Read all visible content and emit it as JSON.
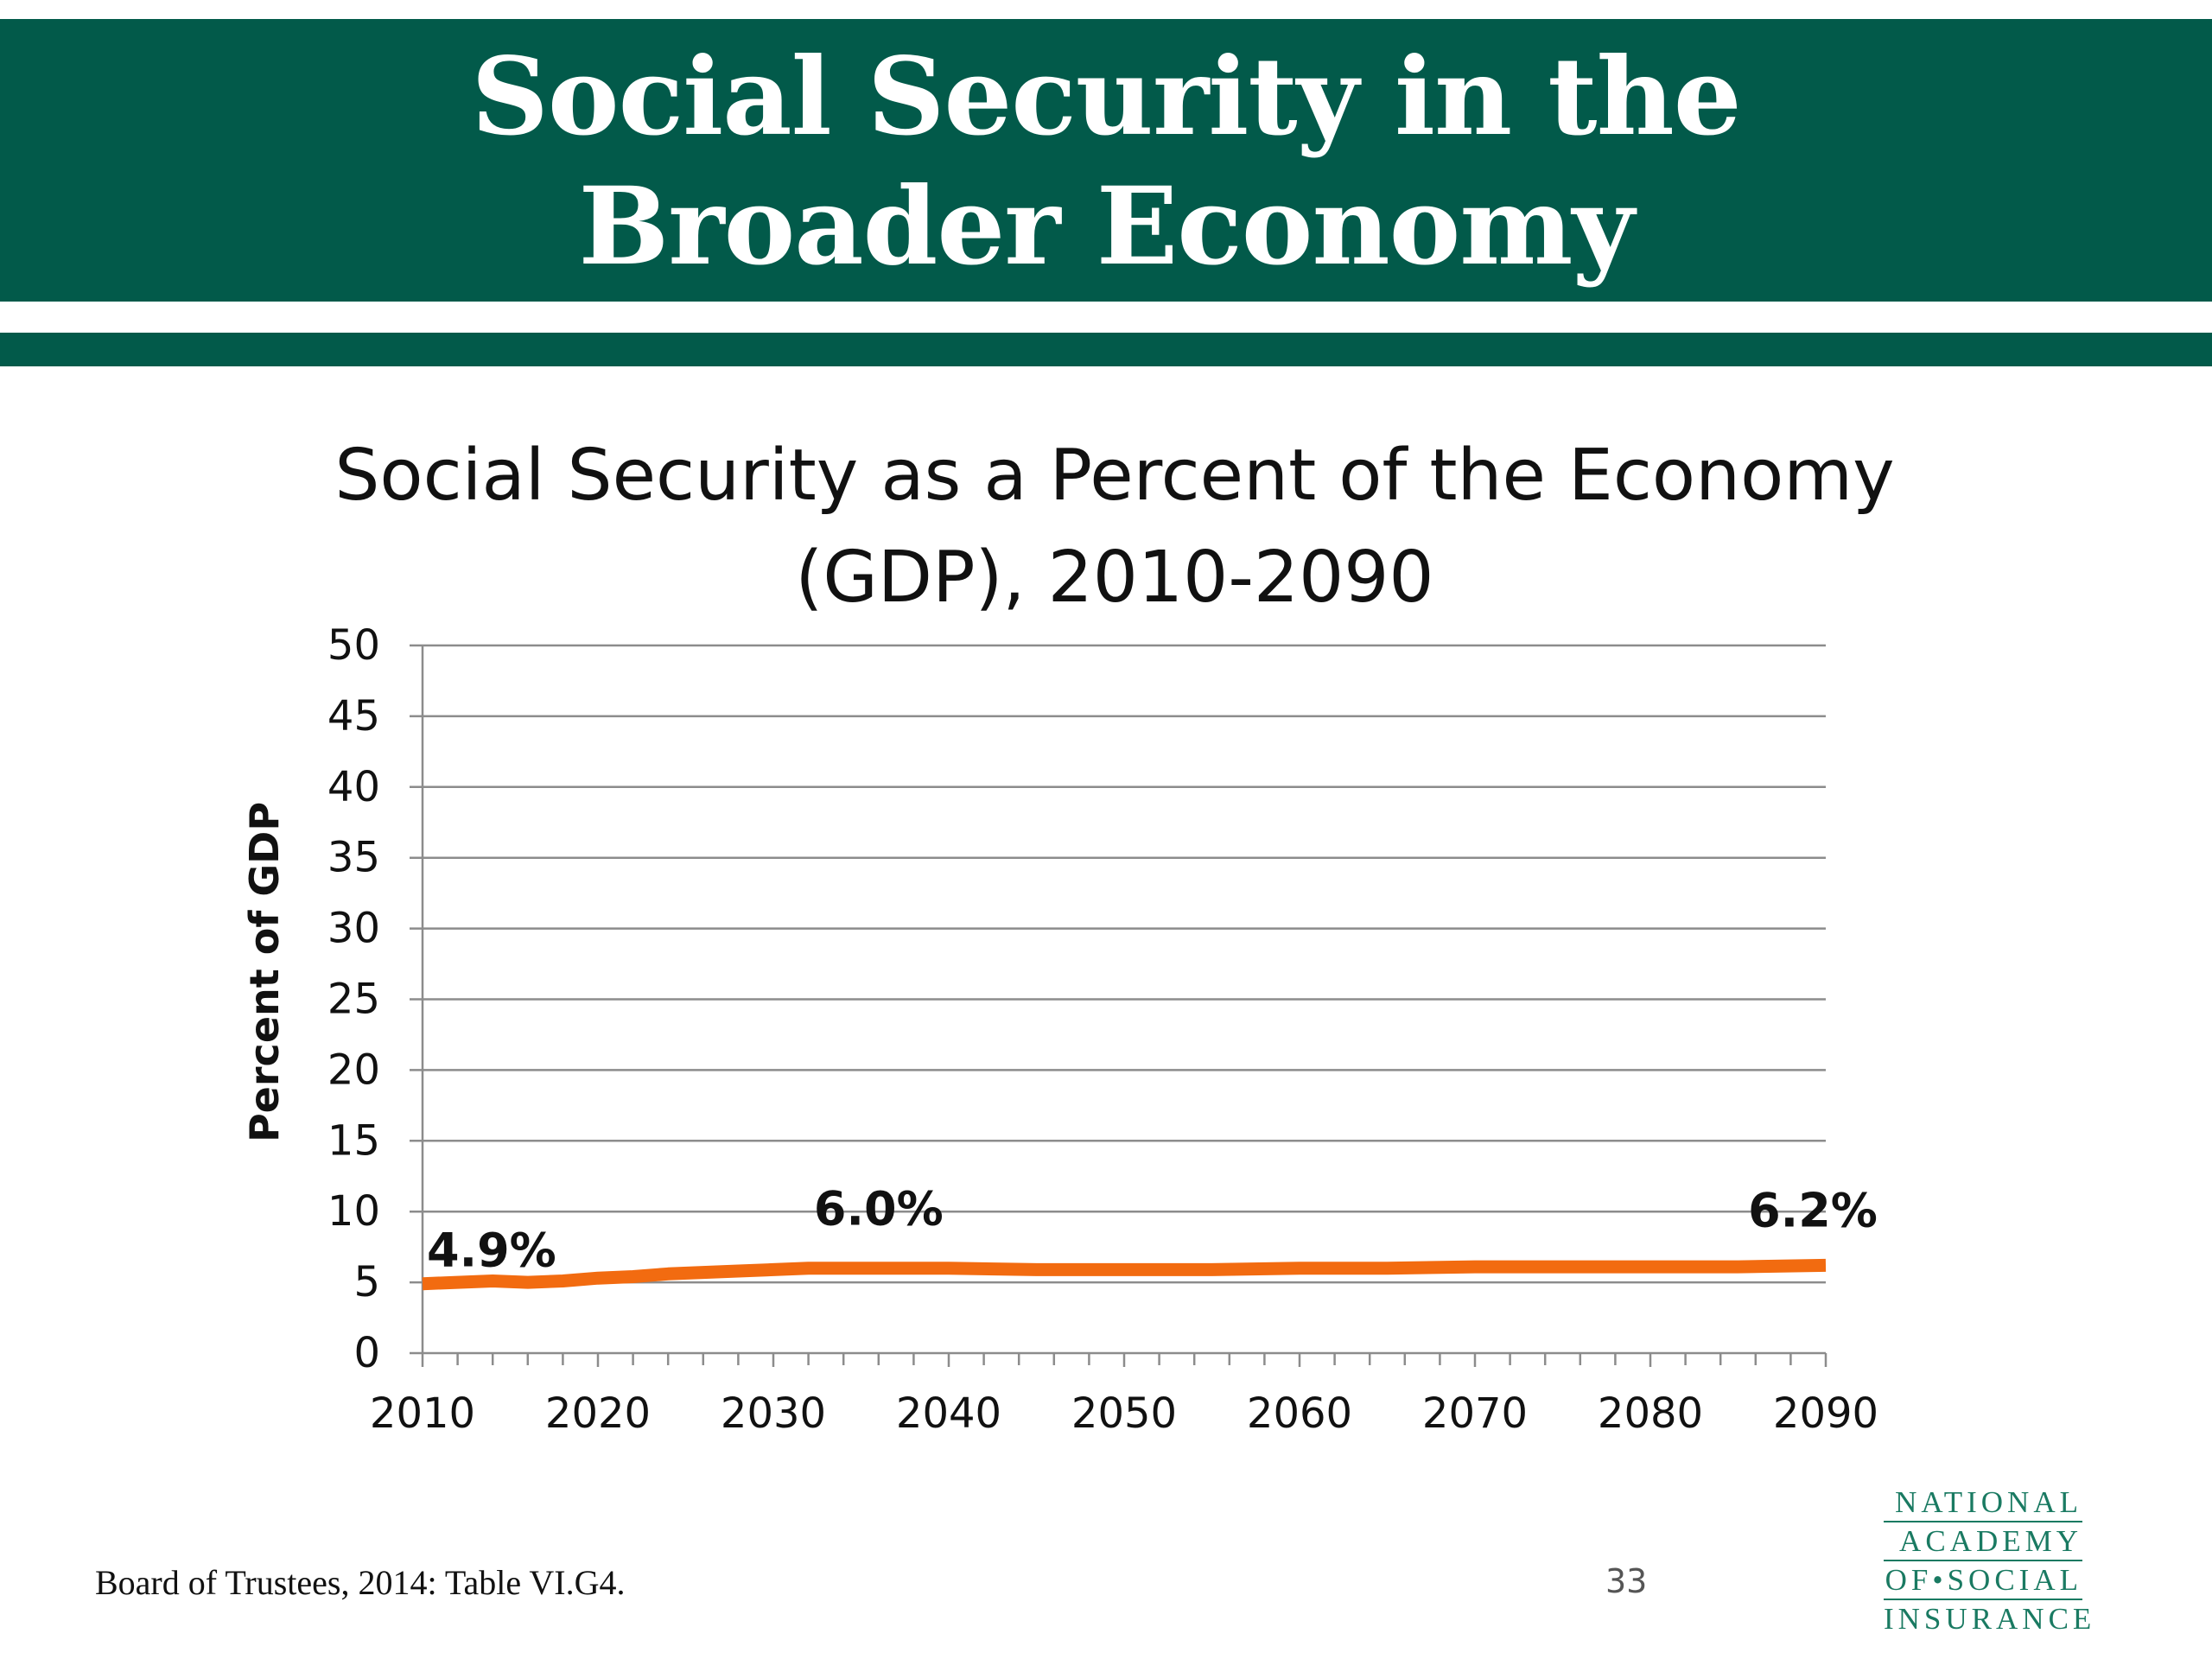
{
  "slide": {
    "title_line1": "Social Security in the",
    "title_line2": "Broader Economy",
    "source": "Board of Trustees, 2014: Table VI.G4.",
    "page_number": "33",
    "logo_lines": [
      "NATIONAL",
      "ACADEMY",
      "OF•SOCIAL",
      "INSURANCE"
    ]
  },
  "colors": {
    "banner": "#025a4a",
    "series_line": "#f26b10",
    "gridline": "#8c8c8c"
  },
  "chart_data": {
    "type": "line",
    "title_line1": "Social Security as a Percent of the Economy",
    "title_line2": "(GDP), 2010-2090",
    "ylabel": "Percent of GDP",
    "xlabel": "",
    "ylim": [
      0,
      50
    ],
    "xlim": [
      2010,
      2090
    ],
    "y_ticks": [
      0,
      5,
      10,
      15,
      20,
      25,
      30,
      35,
      40,
      45,
      50
    ],
    "x_ticks": [
      2010,
      2020,
      2030,
      2040,
      2050,
      2060,
      2070,
      2080,
      2090
    ],
    "grid": true,
    "legend": "none",
    "series": [
      {
        "x": [
          2010,
          2012,
          2014,
          2016,
          2018,
          2020,
          2022,
          2024,
          2026,
          2028,
          2030,
          2032,
          2034,
          2036,
          2038,
          2040,
          2045,
          2050,
          2055,
          2060,
          2065,
          2070,
          2075,
          2080,
          2085,
          2090
        ],
        "values": [
          4.9,
          5.0,
          5.1,
          5.0,
          5.1,
          5.3,
          5.4,
          5.6,
          5.7,
          5.8,
          5.9,
          6.0,
          6.0,
          6.0,
          6.0,
          6.0,
          5.9,
          5.9,
          5.9,
          6.0,
          6.0,
          6.1,
          6.1,
          6.1,
          6.1,
          6.2
        ]
      }
    ],
    "annotations": [
      {
        "x": 2010,
        "y": 4.9,
        "text": "4.9%"
      },
      {
        "x": 2036,
        "y": 6.0,
        "text": "6.0%"
      },
      {
        "x": 2090,
        "y": 6.2,
        "text": "6.2%"
      }
    ]
  }
}
